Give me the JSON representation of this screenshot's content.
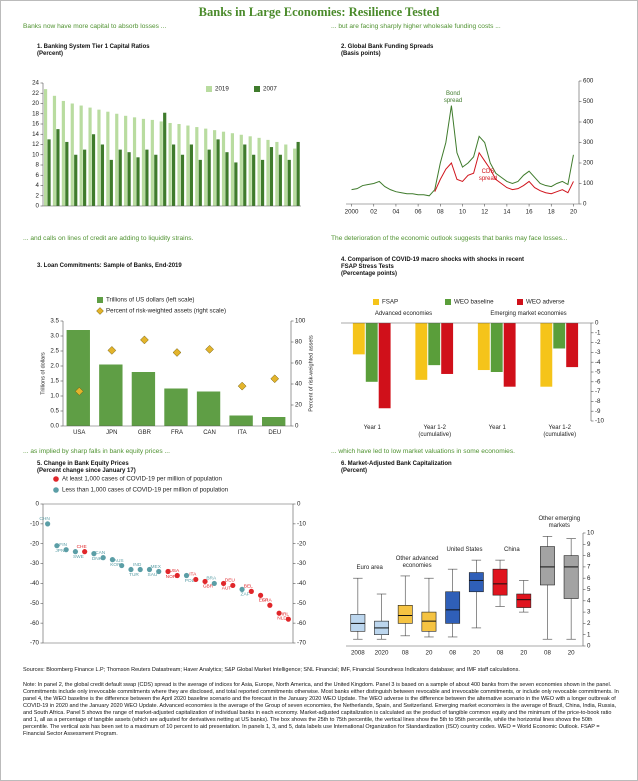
{
  "header": {
    "title": "Banks in Large Economies: Resilience Tested"
  },
  "captions": [
    "Banks now have more capital to absorb losses ...",
    "... but are facing sharply higher wholesale funding costs ...",
    "... and calls on lines of credit are adding to liquidity strains.",
    "The deterioration of the economic outlook suggests that banks may face losses...",
    "... as implied by sharp falls in bank equity prices ...",
    "... which have led to low market valuations in some economies."
  ],
  "chart_data": [
    {
      "type": "bar",
      "title": "1. Banking System Tier 1 Capital Ratios",
      "subtitle": "(Percent)",
      "categories": [
        null,
        null,
        null,
        null,
        null,
        null,
        null,
        null,
        null,
        null,
        null,
        null,
        null,
        null,
        null,
        null,
        null,
        null,
        null,
        null,
        null,
        null,
        null,
        null,
        null,
        null,
        null,
        null,
        null
      ],
      "series": [
        {
          "name": "2019",
          "color": "#b9dca0",
          "values": [
            22.8,
            21.5,
            20.5,
            20.0,
            19.6,
            19.2,
            18.8,
            18.4,
            18.0,
            17.6,
            17.3,
            17.0,
            16.8,
            16.5,
            16.2,
            16.0,
            15.7,
            15.4,
            15.1,
            14.8,
            14.5,
            14.2,
            13.9,
            13.6,
            13.3,
            12.9,
            12.5,
            12.0,
            11.2
          ]
        },
        {
          "name": "2007",
          "color": "#3f7b2c",
          "values": [
            13,
            15,
            12.5,
            10,
            11,
            14,
            12,
            9,
            11,
            10.5,
            9.5,
            11,
            10,
            18.2,
            12,
            10,
            12,
            9,
            11,
            13,
            10.5,
            8.5,
            12,
            10,
            9,
            11.5,
            10,
            9,
            12.5
          ]
        }
      ],
      "ylim": [
        0,
        24
      ],
      "yticks": [
        0,
        2,
        4,
        6,
        8,
        10,
        12,
        14,
        16,
        18,
        20,
        22,
        24
      ],
      "yaxis_side": "left",
      "legend": "top-right"
    },
    {
      "type": "line",
      "title": "2. Global Bank Funding Spreads",
      "subtitle": "(Basis points)",
      "x": [
        2000,
        2000.5,
        2001,
        2001.5,
        2002,
        2002.5,
        2003,
        2003.5,
        2004,
        2004.5,
        2005,
        2005.5,
        2006,
        2006.5,
        2007,
        2007.5,
        2008,
        2008.5,
        2009,
        2009.5,
        2010,
        2010.5,
        2011,
        2011.5,
        2012,
        2012.5,
        2013,
        2013.5,
        2014,
        2014.5,
        2015,
        2015.5,
        2016,
        2016.5,
        2017,
        2017.5,
        2018,
        2018.5,
        2019,
        2019.5,
        2020
      ],
      "series": [
        {
          "name": "Bond spread",
          "color": "#3f7b2c",
          "values": [
            70,
            75,
            90,
            95,
            100,
            110,
            85,
            70,
            60,
            55,
            50,
            50,
            45,
            45,
            40,
            70,
            200,
            300,
            480,
            250,
            180,
            200,
            230,
            330,
            300,
            200,
            150,
            130,
            110,
            100,
            110,
            140,
            160,
            130,
            100,
            90,
            85,
            100,
            110,
            95,
            240
          ]
        },
        {
          "name": "CDS spread",
          "color": "#d0141c",
          "values": [
            null,
            null,
            null,
            null,
            null,
            null,
            null,
            null,
            null,
            null,
            null,
            null,
            null,
            null,
            null,
            60,
            120,
            170,
            200,
            120,
            110,
            140,
            150,
            250,
            210,
            170,
            120,
            100,
            80,
            70,
            75,
            90,
            110,
            80,
            65,
            55,
            50,
            60,
            70,
            55,
            110
          ]
        }
      ],
      "xlim": [
        1999.5,
        2020.5
      ],
      "xticks": [
        2000,
        {
          "value": 2002,
          "label": "02"
        },
        {
          "value": 2004,
          "label": "04"
        },
        {
          "value": 2006,
          "label": "06"
        },
        {
          "value": 2008,
          "label": "08"
        },
        {
          "value": 2010,
          "label": "10"
        },
        {
          "value": 2012,
          "label": "12"
        },
        {
          "value": 2014,
          "label": "14"
        },
        {
          "value": 2016,
          "label": "16"
        },
        {
          "value": 2018,
          "label": "18"
        },
        {
          "value": 2020,
          "label": "20"
        }
      ],
      "ylim": [
        0,
        600
      ],
      "yticks": [
        0,
        100,
        200,
        300,
        400,
        500,
        600
      ],
      "yaxis_side": "right",
      "annotations": [
        "Bond spread",
        "CDS spread"
      ]
    },
    {
      "type": "bar",
      "title": "3. Loan Commitments: Sample of Banks, End-2019",
      "categories": [
        "USA",
        "JPN",
        "GBR",
        "FRA",
        "CAN",
        "ITA",
        "DEU"
      ],
      "series": [
        {
          "name": "Trillions of US dollars (left scale)",
          "color": "#5f9e45",
          "values": [
            3.2,
            2.05,
            1.8,
            1.25,
            1.15,
            0.35,
            0.3
          ]
        },
        {
          "name": "Percent of risk-weighted assets (right scale)",
          "color": "#e3b42c",
          "marker": "diamond",
          "axis": "y2",
          "values": [
            33,
            72,
            82,
            70,
            73,
            38,
            45
          ]
        }
      ],
      "ylim": [
        0,
        3.5
      ],
      "yticks": [
        {
          "value": 0,
          "label": "0.0"
        },
        0.5,
        {
          "value": 1,
          "label": "1.0"
        },
        1.5,
        {
          "value": 2,
          "label": "2.0"
        },
        2.5,
        {
          "value": 3,
          "label": "3.0"
        },
        3.5
      ],
      "y2lim": [
        0,
        100
      ],
      "y2ticks": [
        0,
        20,
        40,
        60,
        80,
        100
      ],
      "yaxis_side": "left",
      "ylabel": "Trillions of dollars",
      "y2label": "Percent of risk-weighted assets"
    },
    {
      "type": "bar",
      "title": "4. Comparison of COVID-19 macro shocks with shocks in recent FSAP Stress Tests",
      "subtitle": "(Percentage points)",
      "groups": [
        "Advanced economies",
        "Emerging market economies"
      ],
      "categories": [
        "Year 1",
        "Year 1-2 (cumulative)",
        "Year 1",
        "Year 1-2 (cumulative)"
      ],
      "series": [
        {
          "name": "FSAP",
          "color": "#f5c41a",
          "values": [
            -3.2,
            -5.8,
            -4.8,
            -6.5
          ]
        },
        {
          "name": "WEO baseline",
          "color": "#5a9e3a",
          "values": [
            -6.0,
            -4.3,
            -5.0,
            -2.6
          ]
        },
        {
          "name": "WEO adverse",
          "color": "#d0101a",
          "values": [
            -8.7,
            -5.2,
            -6.5,
            -4.5
          ]
        }
      ],
      "ylim": [
        -10,
        0
      ],
      "yticks": [
        0,
        -1,
        -2,
        -3,
        -4,
        -5,
        -6,
        -7,
        -8,
        -9,
        -10
      ],
      "yaxis_side": "right"
    },
    {
      "type": "scatter",
      "title": "5. Change in Bank Equity Prices",
      "subtitle": "(Percent change since January 17)",
      "categories": [
        "CHN",
        "JPN",
        "FIN",
        "SWE",
        "CHE",
        "DNK",
        "CAN",
        "KOR",
        "AUS",
        "TUR",
        "IND",
        "SAU",
        "MEX",
        "NOR",
        "USA",
        "POL",
        "ITA",
        "GBR",
        "BRA",
        "AUT",
        "DEU",
        "ZAF",
        "BEL",
        "ESP",
        "FRA",
        "NLD",
        "IRL"
      ],
      "series": [
        {
          "name": "At least 1,000 cases of COVID-19 per million of population",
          "color": "#e0262a",
          "values": [
            null,
            null,
            null,
            null,
            -24,
            null,
            null,
            null,
            null,
            null,
            null,
            null,
            null,
            -34,
            -36,
            null,
            -38,
            -39,
            null,
            -40,
            -41,
            null,
            -44,
            -46,
            -51,
            -55,
            -58
          ]
        },
        {
          "name": "Less than 1,000 cases of COVID-19 per million of population",
          "color": "#5b9ea6",
          "values": [
            -10,
            -21,
            -23,
            -24,
            null,
            -25,
            -27,
            -28,
            -31,
            -33,
            -33,
            -33,
            -34,
            null,
            null,
            -36,
            null,
            null,
            -40,
            null,
            null,
            -43,
            null,
            null,
            null,
            null,
            null
          ]
        }
      ],
      "ylim": [
        -70,
        0
      ],
      "yticks": [
        0,
        -10,
        -20,
        -30,
        -40,
        -50,
        -60,
        -70
      ],
      "yaxis_side": "both"
    },
    {
      "type": "box",
      "title": "6. Market-Adjusted Bank Capitalization",
      "subtitle": "(Percent)",
      "groups": [
        "Euro area",
        "Other advanced economies",
        "United States",
        "China",
        "Other emerging markets"
      ],
      "colors": [
        "#bcd6ee",
        "#f5c342",
        "#2f5fb8",
        "#e0141e",
        "#a3a3a3"
      ],
      "categories": [
        "2008",
        "2020",
        "08",
        "20",
        "08",
        "20",
        "08",
        "20",
        "08",
        "20"
      ],
      "boxes": [
        {
          "low": 0.6,
          "q1": 1.3,
          "median": 2.0,
          "q3": 2.8,
          "high": 6.0
        },
        {
          "low": 0.6,
          "q1": 1.0,
          "median": 1.6,
          "q3": 2.2,
          "high": 4.6
        },
        {
          "low": 0.9,
          "q1": 2.0,
          "median": 2.7,
          "q3": 3.6,
          "high": 6.2
        },
        {
          "low": 0.8,
          "q1": 1.3,
          "median": 2.2,
          "q3": 3.0,
          "high": 6.0
        },
        {
          "low": 0.8,
          "q1": 2.0,
          "median": 3.2,
          "q3": 4.8,
          "high": 6.8
        },
        {
          "low": 1.6,
          "q1": 4.8,
          "median": 5.8,
          "q3": 6.5,
          "high": 7.6
        },
        {
          "low": 3.5,
          "q1": 4.5,
          "median": 5.5,
          "q3": 6.8,
          "high": 7.6
        },
        {
          "low": 3.0,
          "q1": 3.4,
          "median": 4.1,
          "q3": 4.6,
          "high": 5.8
        },
        {
          "low": 0.6,
          "q1": 5.4,
          "median": 7.0,
          "q3": 8.8,
          "high": 9.7
        },
        {
          "low": 0.6,
          "q1": 4.2,
          "median": 7.0,
          "q3": 8.0,
          "high": 9.5
        }
      ],
      "ylim": [
        0,
        10
      ],
      "yticks": [
        0,
        1,
        2,
        3,
        4,
        5,
        6,
        7,
        8,
        9,
        10
      ],
      "yaxis_side": "right"
    }
  ],
  "footer": {
    "sources": "Sources: Bloomberg Finance L.P; Thomson Reuters Datastream; Haver Analytics; S&P Global Market Intelligence; SNL Financial; IMF, Financial Soundness Indicators database; and IMF staff calculations.",
    "note": "Note: In panel 2, the global credit default swap (CDS) spread is the average of indices for Asia, Europe, North America, and the United Kingdom. Panel 3 is based on a sample of about 400 banks from the seven economies shown in the panel. Commitments include only irrevocable commitments where they are disclosed, and total reported commitments otherwise. Most banks either distinguish between revocable and irrevocable commitments, or include only revocable commitments. In panel 4, the WEO baseline is the difference between the April 2020 baseline scenario and the forecast in the January 2020 WEO Update. The WEO adverse is the difference between the alternative scenario in the WEO with a longer outbreak of COVID-19 in 2020 and the January 2020 WEO Update. Advanced economies is the average of the Group of seven economies, the Netherlands, Spain, and Switzerland. Emerging market economies is the average of Brazil, China, India, Russia, and South Africa. Panel 5 shows the range of market-adjusted capitalization of individual banks in each economy. Market-adjusted capitalization is calculated as the product of tangible common equity and the minimum of the price-to-book ratio and 1, all as a percentage of tangible assets (which are adjusted for derivatives netting at US banks). The box shows the 25th to 75th percentile, the vertical lines show the 5th to 95th percentile, while the horizontal lines shows the 50th percentile. The vertical axis has been set to a maximum of 10 percent to aid presentation. In panels 1, 3, and 5, data labels use International Organization for Standardization (ISO) country codes. WEO = World Economic Outlook. FSAP = Financial Sector Assessment Program."
  }
}
